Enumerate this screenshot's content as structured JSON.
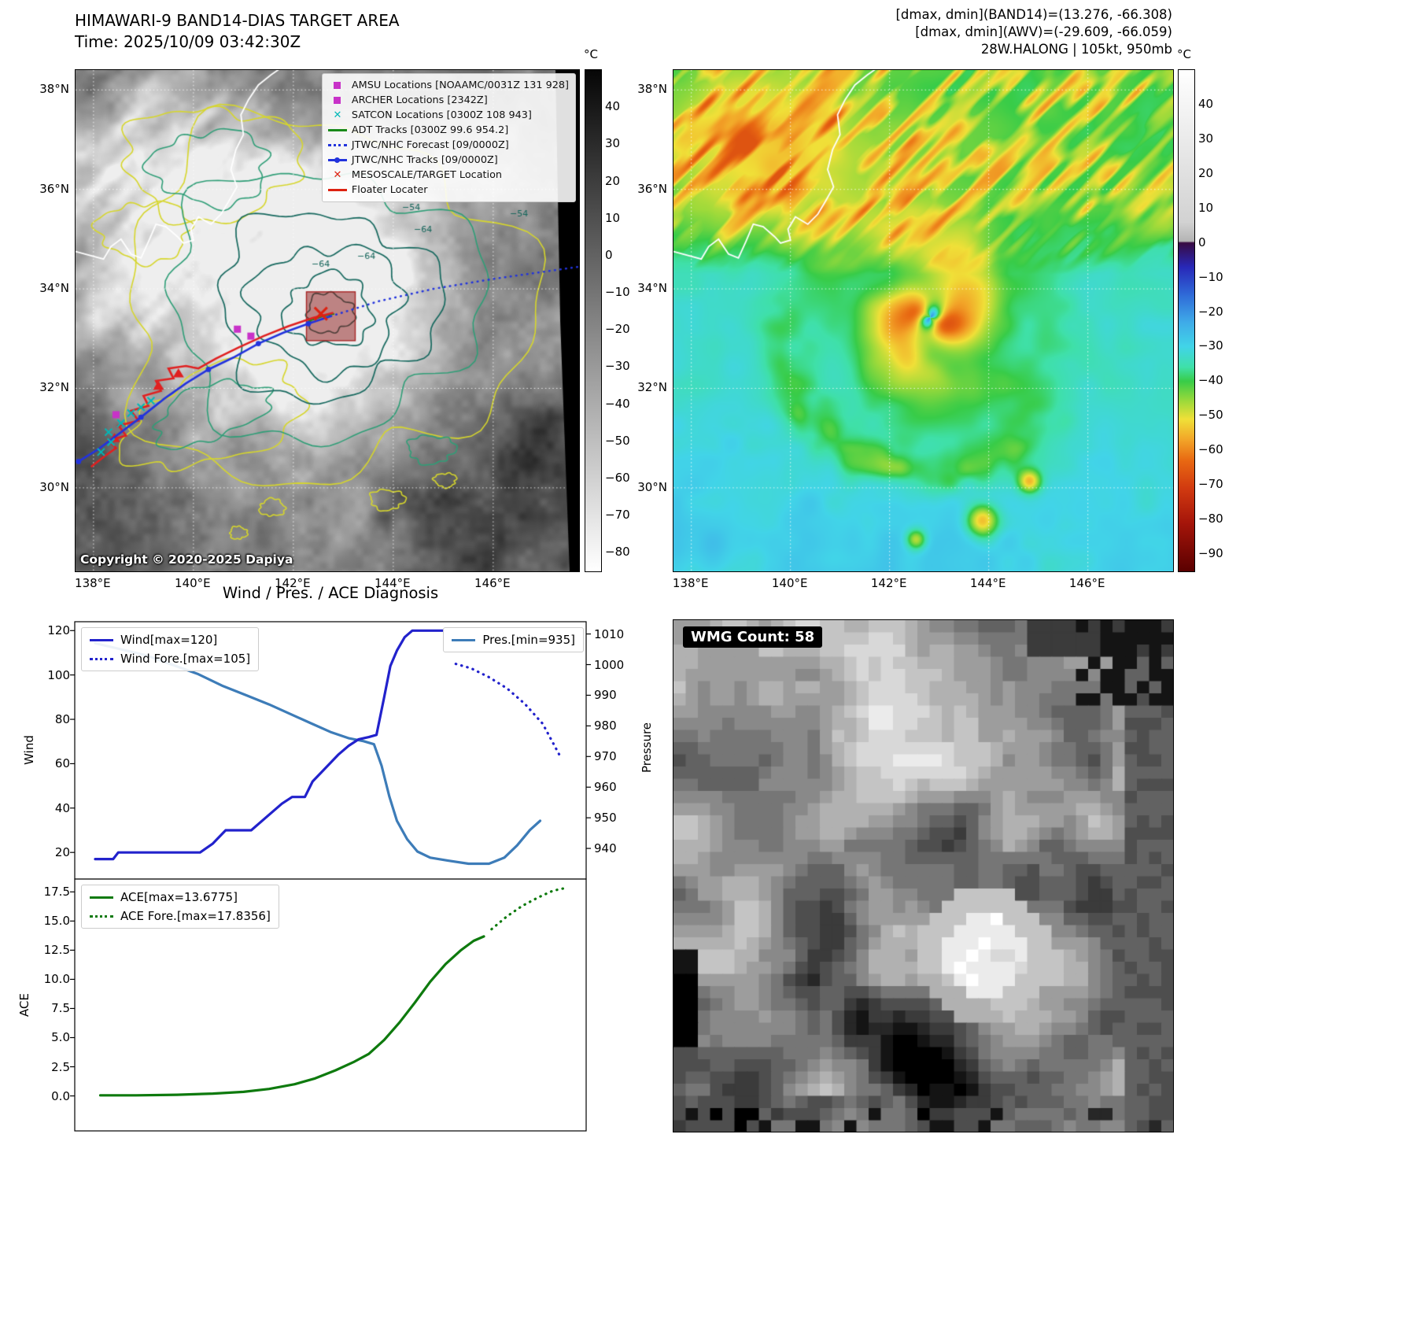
{
  "band14_panel": {
    "title": "HIMAWARI-9 BAND14-DIAS TARGET AREA",
    "time_line": "Time: 2025/10/09 03:42:30Z",
    "copyright": "Copyright © 2020-2025 Dapiya",
    "legend_items": [
      {
        "label": "AMSU Locations [NOAAMC/0031Z 131 928]",
        "marker": "square",
        "color": "#c832c8",
        "icon": "amsu-square-icon"
      },
      {
        "label": "ARCHER Locations [2342Z]",
        "marker": "square",
        "color": "#c832c8",
        "icon": "archer-square-icon"
      },
      {
        "label": "SATCON Locations [0300Z 108 943]",
        "marker": "x",
        "color": "#00b8b8",
        "icon": "satcon-x-icon"
      },
      {
        "label": "ADT Tracks [0300Z 99.6 954.2]",
        "marker": "line",
        "color": "#1a8a1a",
        "icon": "adt-line-icon"
      },
      {
        "label": "JTWC/NHC Forecast [09/0000Z]",
        "marker": "dotted",
        "color": "#2233dd",
        "icon": "forecast-dotted-icon"
      },
      {
        "label": "JTWC/NHC Tracks [09/0000Z]",
        "marker": "line-dot",
        "color": "#2233dd",
        "icon": "track-line-dot-icon"
      },
      {
        "label": "MESOSCALE/TARGET Location",
        "marker": "x",
        "color": "#dd2211",
        "icon": "target-x-icon"
      },
      {
        "label": "Floater Locater",
        "marker": "line",
        "color": "#dd2211",
        "icon": "floater-line-icon"
      }
    ],
    "x_ticks": [
      {
        "v": 138,
        "label": "138°E"
      },
      {
        "v": 140,
        "label": "140°E"
      },
      {
        "v": 142,
        "label": "142°E"
      },
      {
        "v": 144,
        "label": "144°E"
      },
      {
        "v": 146,
        "label": "146°E"
      }
    ],
    "y_ticks": [
      {
        "v": 38,
        "label": "38°N"
      },
      {
        "v": 36,
        "label": "36°N"
      },
      {
        "v": 34,
        "label": "34°N"
      },
      {
        "v": 32,
        "label": "32°N"
      },
      {
        "v": 30,
        "label": "30°N"
      }
    ],
    "colorbar": {
      "unit": "°C",
      "vtop": 50,
      "vbot": -85,
      "stops": [
        {
          "v": 50,
          "c": "#060606"
        },
        {
          "v": -85,
          "c": "#ffffff"
        }
      ],
      "ticks": [
        {
          "v": 40,
          "label": "40"
        },
        {
          "v": 30,
          "label": "30"
        },
        {
          "v": 20,
          "label": "20"
        },
        {
          "v": 10,
          "label": "10"
        },
        {
          "v": 0,
          "label": "0"
        },
        {
          "v": -10,
          "label": "−10"
        },
        {
          "v": -20,
          "label": "−20"
        },
        {
          "v": -30,
          "label": "−30"
        },
        {
          "v": -40,
          "label": "−40"
        },
        {
          "v": -50,
          "label": "−50"
        },
        {
          "v": -60,
          "label": "−60"
        },
        {
          "v": -70,
          "label": "−70"
        },
        {
          "v": -80,
          "label": "−80"
        }
      ]
    },
    "contour_labels": [
      "−54",
      "−64",
      "−64",
      "−54",
      "−64"
    ],
    "map_annotations": {
      "jtwc_track": [
        [
          137.7,
          30.53
        ],
        [
          138.1,
          30.78
        ],
        [
          138.5,
          31.08
        ],
        [
          138.95,
          31.42
        ],
        [
          139.4,
          31.78
        ],
        [
          139.85,
          32.1
        ],
        [
          140.3,
          32.38
        ],
        [
          140.8,
          32.62
        ],
        [
          141.3,
          32.9
        ],
        [
          141.8,
          33.12
        ],
        [
          142.3,
          33.3
        ],
        [
          142.75,
          33.45
        ]
      ],
      "jtwc_dots": [
        [
          137.7,
          30.53
        ],
        [
          138.95,
          31.42
        ],
        [
          140.3,
          32.38
        ],
        [
          141.3,
          32.9
        ],
        [
          142.3,
          33.3
        ]
      ],
      "forecast_track": [
        [
          142.75,
          33.45
        ],
        [
          143.7,
          33.75
        ],
        [
          144.8,
          34.0
        ],
        [
          146.0,
          34.2
        ],
        [
          147.4,
          34.4
        ],
        [
          147.75,
          34.45
        ]
      ],
      "floater_track": [
        [
          137.95,
          30.42
        ],
        [
          138.2,
          30.62
        ],
        [
          138.45,
          30.8
        ],
        [
          138.3,
          30.95
        ],
        [
          138.65,
          31.05
        ],
        [
          138.5,
          31.25
        ],
        [
          138.9,
          31.35
        ],
        [
          138.75,
          31.55
        ],
        [
          139.1,
          31.65
        ],
        [
          139.0,
          31.85
        ],
        [
          139.35,
          31.95
        ],
        [
          139.25,
          32.15
        ],
        [
          139.6,
          32.2
        ],
        [
          139.5,
          32.4
        ],
        [
          139.85,
          32.45
        ],
        [
          140.1,
          32.4
        ],
        [
          140.45,
          32.6
        ],
        [
          140.9,
          32.82
        ],
        [
          141.4,
          33.05
        ],
        [
          141.9,
          33.25
        ],
        [
          142.4,
          33.42
        ],
        [
          142.8,
          33.52
        ]
      ],
      "floater_flags": [
        [
          138.42,
          31.0
        ],
        [
          139.3,
          32.05
        ],
        [
          139.7,
          32.3
        ]
      ],
      "satcon_points": [
        [
          138.15,
          30.72
        ],
        [
          138.35,
          30.92
        ],
        [
          138.3,
          31.12
        ],
        [
          138.55,
          31.3
        ],
        [
          138.75,
          31.5
        ],
        [
          138.95,
          31.62
        ],
        [
          139.15,
          31.75
        ]
      ],
      "amsu_points": [
        [
          138.45,
          31.47
        ],
        [
          140.88,
          33.19
        ],
        [
          141.15,
          33.05
        ]
      ],
      "adt_track": [
        [
          142.3,
          33.35
        ],
        [
          142.62,
          33.46
        ],
        [
          142.82,
          33.5
        ]
      ],
      "target_center": [
        142.75,
        33.45
      ],
      "mesoscale_x": [
        142.55,
        33.5
      ]
    }
  },
  "awv_panel": {
    "header_lines": [
      "[dmax, dmin](BAND14)=(13.276, -66.308)",
      "[dmax, dmin](AWV)=(-29.609, -66.059)",
      "28W.HALONG | 105kt, 950mb"
    ],
    "x_ticks": [
      {
        "v": 138,
        "label": "138°E"
      },
      {
        "v": 140,
        "label": "140°E"
      },
      {
        "v": 142,
        "label": "142°E"
      },
      {
        "v": 144,
        "label": "144°E"
      },
      {
        "v": 146,
        "label": "146°E"
      }
    ],
    "y_ticks": [
      {
        "v": 38,
        "label": "38°N"
      },
      {
        "v": 36,
        "label": "36°N"
      },
      {
        "v": 34,
        "label": "34°N"
      },
      {
        "v": 32,
        "label": "32°N"
      },
      {
        "v": 30,
        "label": "30°N"
      }
    ],
    "colorbar": {
      "unit": "°C",
      "vtop": 50,
      "vbot": -95,
      "stops": [
        {
          "v": 50,
          "c": "#ffffff"
        },
        {
          "v": 6,
          "c": "#d2d2d2"
        },
        {
          "v": 0.5,
          "c": "#b4b4b4"
        },
        {
          "v": 0,
          "c": "#380a42"
        },
        {
          "v": -7,
          "c": "#2828b8"
        },
        {
          "v": -15,
          "c": "#2f6ad8"
        },
        {
          "v": -23,
          "c": "#3fabe8"
        },
        {
          "v": -30,
          "c": "#41d4e8"
        },
        {
          "v": -36,
          "c": "#3fe0a8"
        },
        {
          "v": -40,
          "c": "#38cc48"
        },
        {
          "v": -46,
          "c": "#a0da3a"
        },
        {
          "v": -51,
          "c": "#f0e038"
        },
        {
          "v": -57,
          "c": "#f2a428"
        },
        {
          "v": -63,
          "c": "#e86812"
        },
        {
          "v": -71,
          "c": "#d13a10"
        },
        {
          "v": -81,
          "c": "#a5150a"
        },
        {
          "v": -95,
          "c": "#5a0000"
        }
      ],
      "ticks": [
        {
          "v": 40,
          "label": "40"
        },
        {
          "v": 30,
          "label": "30"
        },
        {
          "v": 20,
          "label": "20"
        },
        {
          "v": 10,
          "label": "10"
        },
        {
          "v": 0,
          "label": "0"
        },
        {
          "v": -10,
          "label": "−10"
        },
        {
          "v": -20,
          "label": "−20"
        },
        {
          "v": -30,
          "label": "−30"
        },
        {
          "v": -40,
          "label": "−40"
        },
        {
          "v": -50,
          "label": "−50"
        },
        {
          "v": -60,
          "label": "−60"
        },
        {
          "v": -70,
          "label": "−70"
        },
        {
          "v": -80,
          "label": "−80"
        },
        {
          "v": -90,
          "label": "−90"
        }
      ]
    }
  },
  "wmg_panel": {
    "label": "WMG Count: 58"
  },
  "charts_title": "Wind / Pres. / ACE Diagnosis",
  "chart_data": [
    {
      "type": "line",
      "title": "Wind / Pres. / ACE Diagnosis",
      "ylabel_left": "Wind",
      "ylabel_right": "Pressure",
      "ylim_left": [
        8,
        124
      ],
      "ylim_right": [
        930,
        1014
      ],
      "xlim": [
        0,
        1
      ],
      "x_ticks": [],
      "y_ticks_left": [
        {
          "v": 20,
          "label": "20"
        },
        {
          "v": 40,
          "label": "40"
        },
        {
          "v": 60,
          "label": "60"
        },
        {
          "v": 80,
          "label": "80"
        },
        {
          "v": 100,
          "label": "100"
        },
        {
          "v": 120,
          "label": "120"
        }
      ],
      "y_ticks_right": [
        {
          "v": 940,
          "label": "940"
        },
        {
          "v": 950,
          "label": "950"
        },
        {
          "v": 960,
          "label": "960"
        },
        {
          "v": 970,
          "label": "970"
        },
        {
          "v": 980,
          "label": "980"
        },
        {
          "v": 990,
          "label": "990"
        },
        {
          "v": 1000,
          "label": "1000"
        },
        {
          "v": 1010,
          "label": "1010"
        }
      ],
      "series": [
        {
          "name": "Pres.[min=935]",
          "axis": "right",
          "style": "solid",
          "color": "#3d7cb8",
          "points": [
            [
              0.04,
              1007
            ],
            [
              0.09,
              1005
            ],
            [
              0.14,
              1003
            ],
            [
              0.19,
              1000
            ],
            [
              0.24,
              997
            ],
            [
              0.29,
              993
            ],
            [
              0.335,
              990
            ],
            [
              0.38,
              987
            ],
            [
              0.42,
              984
            ],
            [
              0.46,
              981
            ],
            [
              0.5,
              978
            ],
            [
              0.535,
              976
            ],
            [
              0.565,
              975
            ],
            [
              0.585,
              974
            ],
            [
              0.6,
              967
            ],
            [
              0.615,
              957
            ],
            [
              0.63,
              949
            ],
            [
              0.65,
              943
            ],
            [
              0.67,
              939
            ],
            [
              0.695,
              937
            ],
            [
              0.73,
              936
            ],
            [
              0.77,
              935
            ],
            [
              0.81,
              935
            ],
            [
              0.84,
              937
            ],
            [
              0.865,
              941
            ],
            [
              0.89,
              946
            ],
            [
              0.91,
              949
            ]
          ]
        },
        {
          "name": "Wind[max=120]",
          "axis": "left",
          "style": "solid",
          "color": "#2222cc",
          "points": [
            [
              0.04,
              17
            ],
            [
              0.075,
              17
            ],
            [
              0.085,
              20
            ],
            [
              0.13,
              20
            ],
            [
              0.19,
              20
            ],
            [
              0.245,
              20
            ],
            [
              0.27,
              24
            ],
            [
              0.295,
              30
            ],
            [
              0.345,
              30
            ],
            [
              0.375,
              36
            ],
            [
              0.405,
              42
            ],
            [
              0.425,
              45
            ],
            [
              0.45,
              45
            ],
            [
              0.465,
              52
            ],
            [
              0.49,
              58
            ],
            [
              0.515,
              64
            ],
            [
              0.535,
              68
            ],
            [
              0.555,
              71
            ],
            [
              0.575,
              72
            ],
            [
              0.59,
              73
            ],
            [
              0.605,
              90
            ],
            [
              0.617,
              104
            ],
            [
              0.63,
              111
            ],
            [
              0.645,
              117
            ],
            [
              0.66,
              120
            ],
            [
              0.72,
              120
            ]
          ]
        },
        {
          "name": "Wind Fore.[max=105]",
          "axis": "left",
          "style": "dotted",
          "color": "#2222cc",
          "points": [
            [
              0.745,
              105
            ],
            [
              0.775,
              103
            ],
            [
              0.81,
              99
            ],
            [
              0.845,
              94
            ],
            [
              0.88,
              87
            ],
            [
              0.915,
              78
            ],
            [
              0.95,
              63
            ]
          ]
        }
      ],
      "legend_left": [
        "Wind[max=120]",
        "Wind Fore.[max=105]"
      ],
      "legend_right": [
        "Pres.[min=935]"
      ]
    },
    {
      "type": "line",
      "ylabel_left": "ACE",
      "ylim_left": [
        -3,
        18.6
      ],
      "xlim": [
        0,
        1
      ],
      "x_ticks": [],
      "y_ticks_left": [
        {
          "v": 0,
          "label": "0.0"
        },
        {
          "v": 2.5,
          "label": "2.5"
        },
        {
          "v": 5,
          "label": "5.0"
        },
        {
          "v": 7.5,
          "label": "7.5"
        },
        {
          "v": 10,
          "label": "10.0"
        },
        {
          "v": 12.5,
          "label": "12.5"
        },
        {
          "v": 15,
          "label": "15.0"
        },
        {
          "v": 17.5,
          "label": "17.5"
        }
      ],
      "series": [
        {
          "name": "ACE[max=13.6775]",
          "axis": "left",
          "style": "solid",
          "color": "#0e7a0e",
          "points": [
            [
              0.05,
              0.05
            ],
            [
              0.12,
              0.05
            ],
            [
              0.2,
              0.1
            ],
            [
              0.27,
              0.2
            ],
            [
              0.33,
              0.35
            ],
            [
              0.38,
              0.6
            ],
            [
              0.43,
              1.0
            ],
            [
              0.47,
              1.5
            ],
            [
              0.51,
              2.2
            ],
            [
              0.545,
              2.9
            ],
            [
              0.575,
              3.6
            ],
            [
              0.605,
              4.8
            ],
            [
              0.635,
              6.3
            ],
            [
              0.665,
              8.0
            ],
            [
              0.695,
              9.8
            ],
            [
              0.725,
              11.3
            ],
            [
              0.755,
              12.5
            ],
            [
              0.78,
              13.3
            ],
            [
              0.8,
              13.6775
            ]
          ]
        },
        {
          "name": "ACE Fore.[max=17.8356]",
          "axis": "left",
          "style": "dotted",
          "color": "#0e7a0e",
          "points": [
            [
              0.815,
              14.3
            ],
            [
              0.845,
              15.4
            ],
            [
              0.875,
              16.3
            ],
            [
              0.905,
              17.0
            ],
            [
              0.935,
              17.6
            ],
            [
              0.96,
              17.8356
            ]
          ]
        }
      ],
      "legend_left": [
        "ACE[max=13.6775]",
        "ACE Fore.[max=17.8356]"
      ]
    }
  ]
}
